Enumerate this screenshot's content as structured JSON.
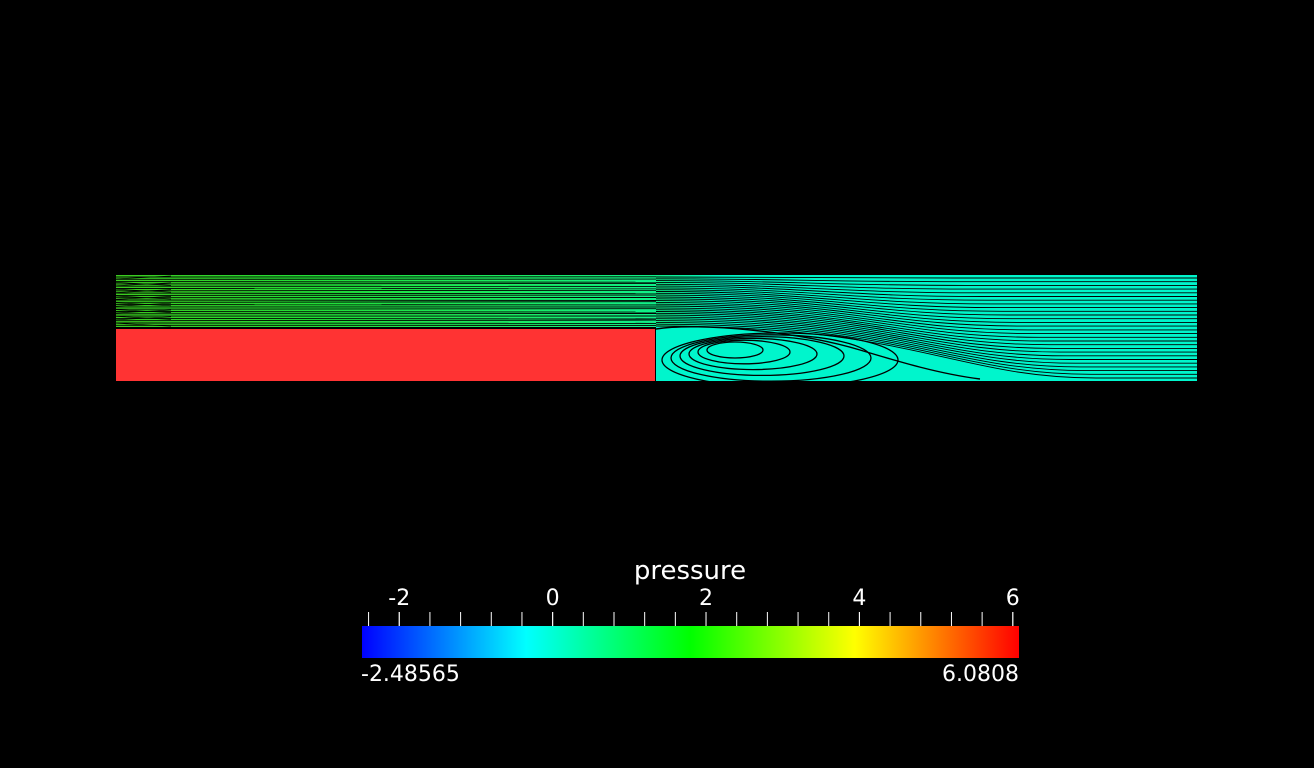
{
  "scalar_bar": {
    "title": "pressure",
    "range_min_label": "-2.48565",
    "range_max_label": "6.0808",
    "range_min": -2.48565,
    "range_max": 6.0808,
    "major_ticks": [
      {
        "value": -2,
        "label": "-2"
      },
      {
        "value": 0,
        "label": "0"
      },
      {
        "value": 2,
        "label": "2"
      },
      {
        "value": 4,
        "label": "4"
      },
      {
        "value": 6,
        "label": "6"
      }
    ],
    "minor_tick_step": 0.4,
    "colormap_stops": [
      "#0000ff",
      "#00ffff",
      "#00ff00",
      "#ffff00",
      "#ff0000"
    ]
  },
  "colors": {
    "background": "#000000",
    "step_region": "#ff3333",
    "upstream_flow": "#22dd22",
    "downstream_flow": "#00f5cc",
    "streamline": "#000000"
  }
}
